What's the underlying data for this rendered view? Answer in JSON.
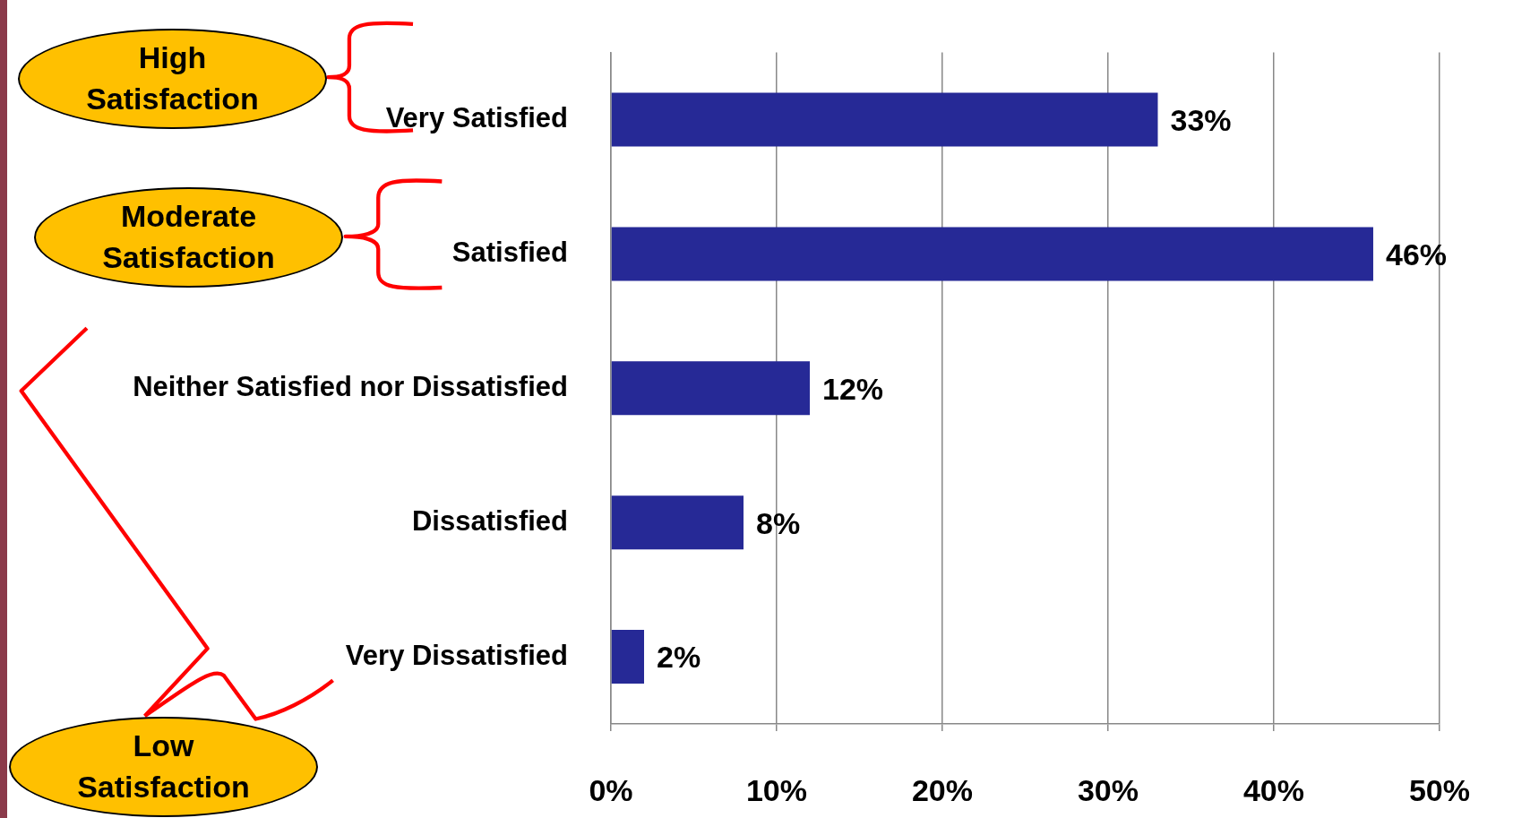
{
  "chart_data": {
    "type": "bar",
    "orientation": "horizontal",
    "categories": [
      "Very Satisfied",
      "Satisfied",
      "Neither Satisfied nor Dissatisfied",
      "Dissatisfied",
      "Very Dissatisfied"
    ],
    "values": [
      33,
      46,
      12,
      8,
      2
    ],
    "value_labels": [
      "33%",
      "46%",
      "12%",
      "8%",
      "2%"
    ],
    "color": "#262996",
    "xlim": [
      0,
      50
    ],
    "xticks": [
      {
        "value": 0,
        "label": "0%"
      },
      {
        "value": 10,
        "label": "10%"
      },
      {
        "value": 20,
        "label": "20%"
      },
      {
        "value": 30,
        "label": "30%"
      },
      {
        "value": 40,
        "label": "40%"
      },
      {
        "value": 50,
        "label": "50%"
      }
    ],
    "grid": "x",
    "annotations": [
      "High Satisfaction",
      "Moderate Satisfaction",
      "Low Satisfaction"
    ]
  }
}
